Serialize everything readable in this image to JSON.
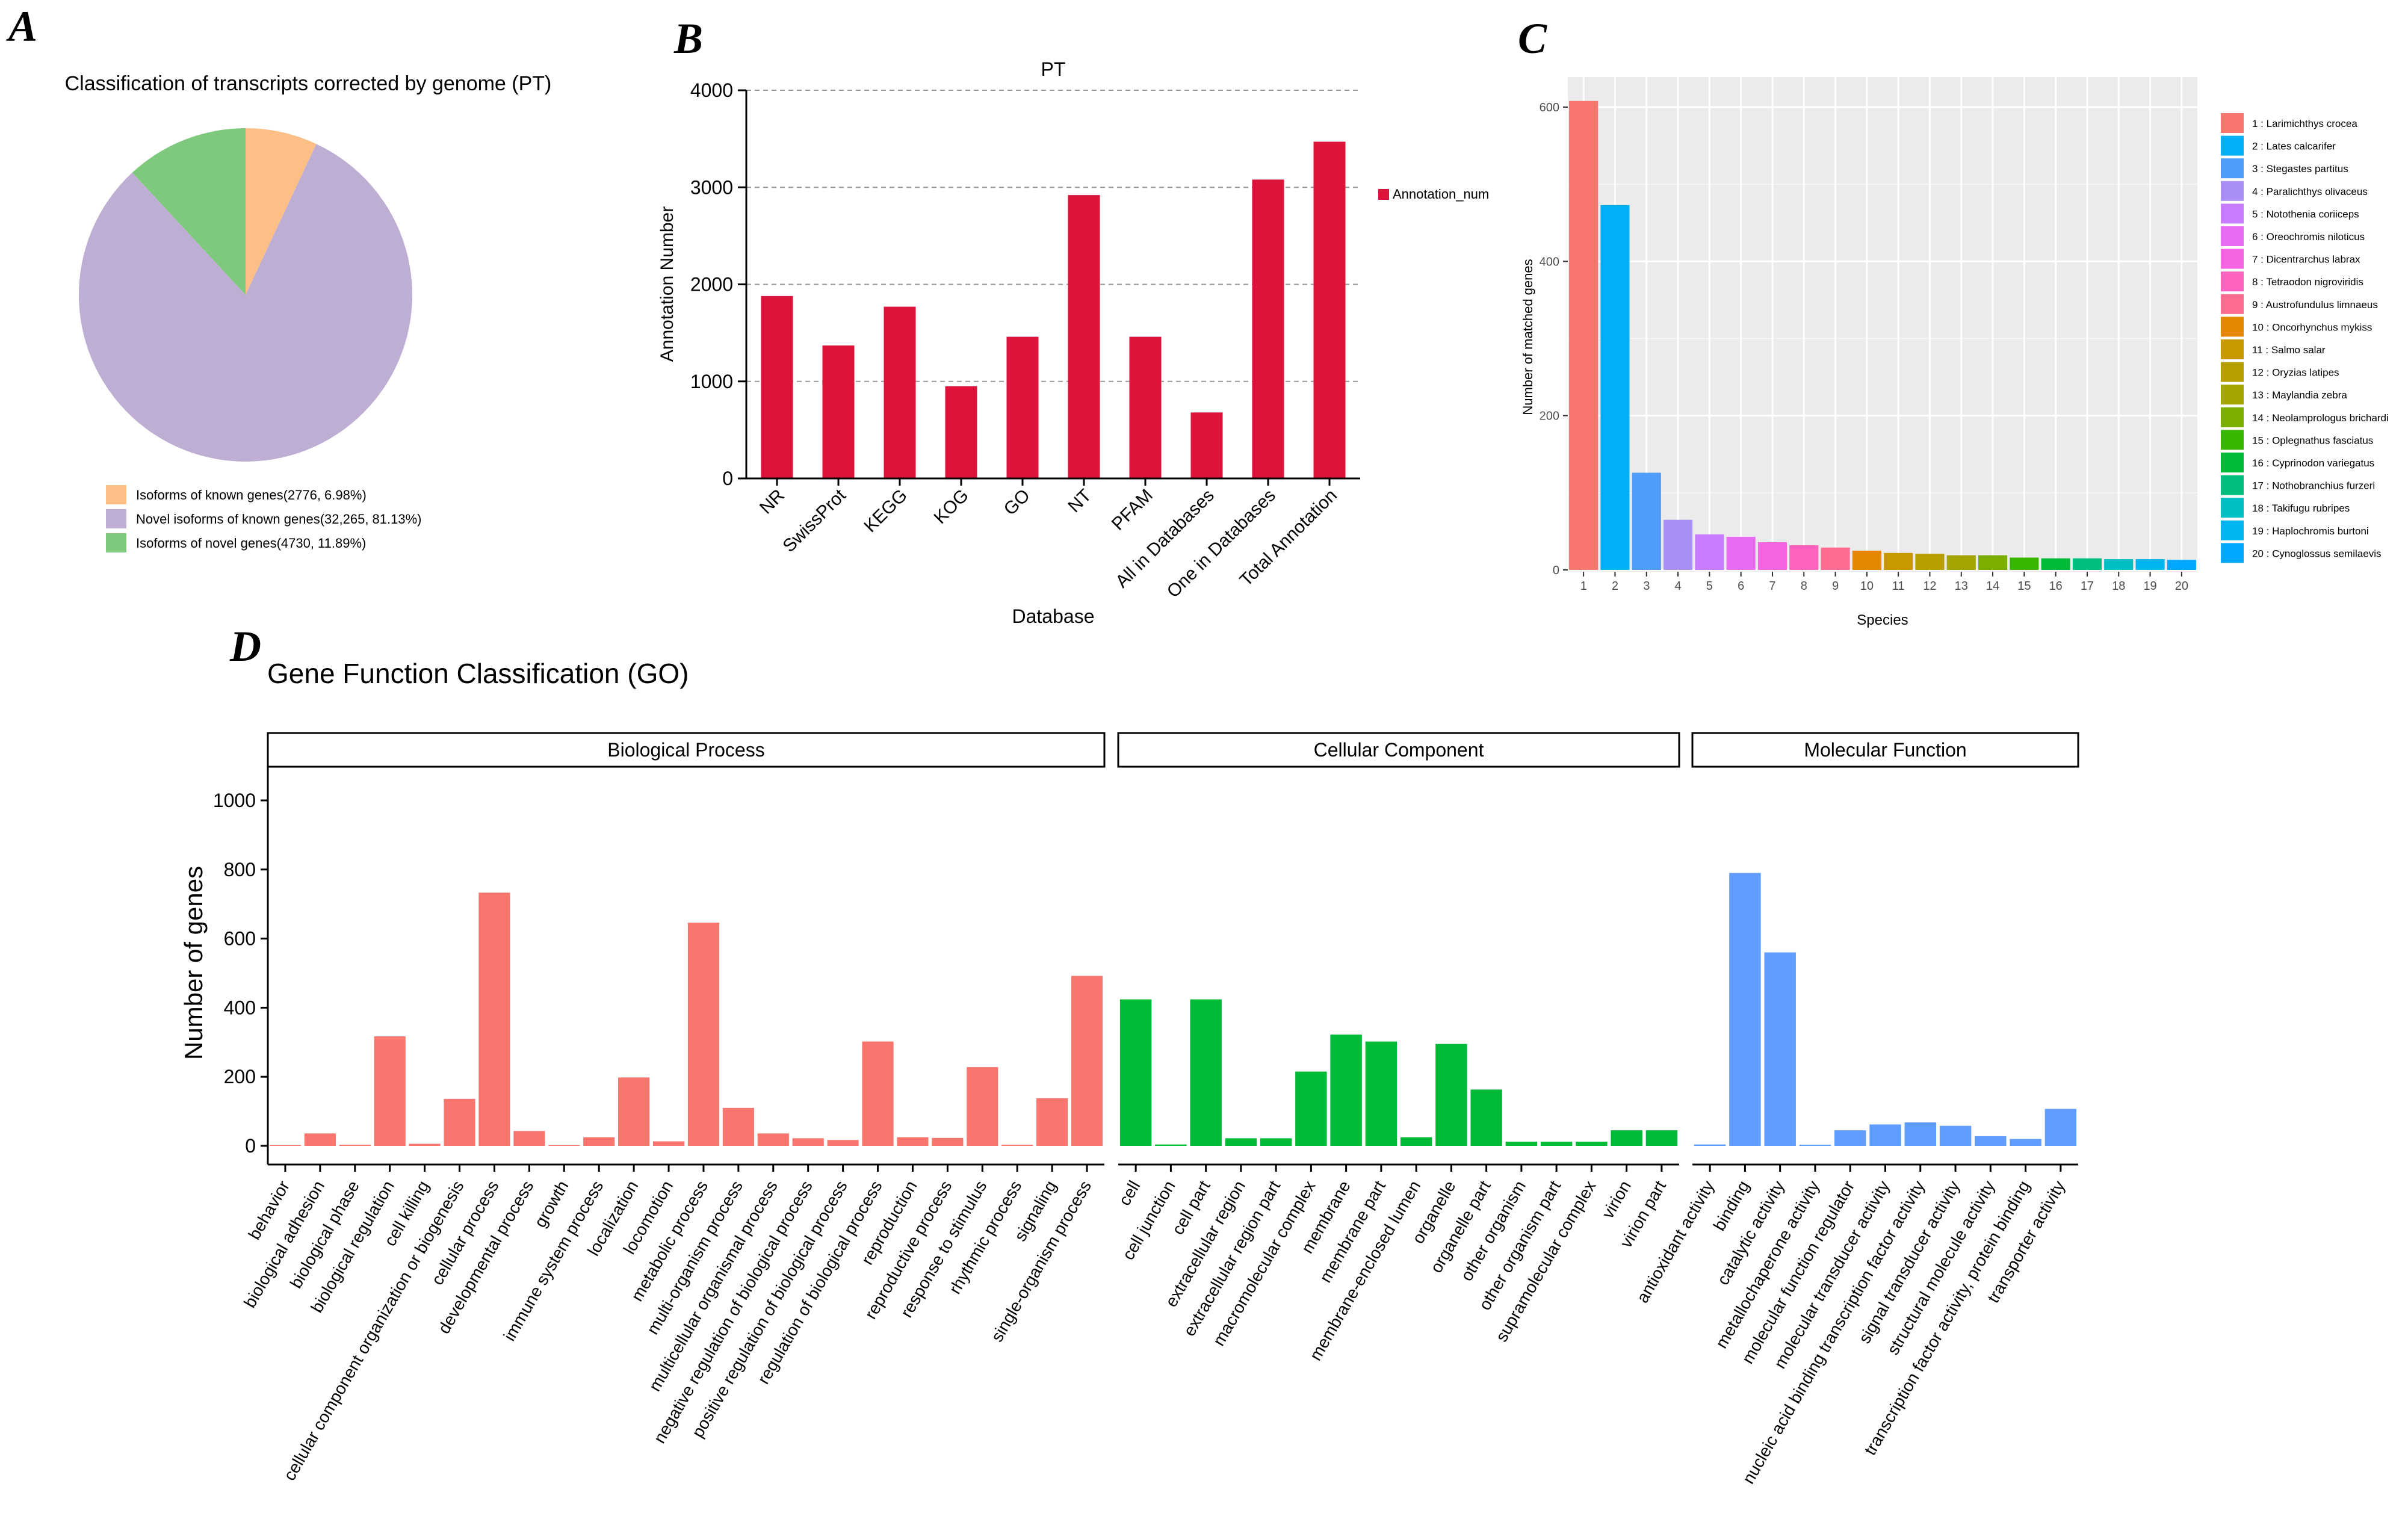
{
  "panels": {
    "a": "A",
    "b": "B",
    "c": "C",
    "d": "D"
  },
  "chart_data": [
    {
      "id": "A",
      "type": "pie",
      "title": "Classification of transcripts corrected by genome (PT)",
      "slices": [
        {
          "label": "Isoforms of known genes(2776, 6.98%)",
          "value": 2776,
          "percent": 6.98,
          "color": "#FDBF86"
        },
        {
          "label": "Novel isoforms of known genes(32,265, 81.13%)",
          "value": 32265,
          "percent": 81.13,
          "color": "#BEAED4"
        },
        {
          "label": "Isoforms of novel genes(4730, 11.89%)",
          "value": 4730,
          "percent": 11.89,
          "color": "#7FC97F"
        }
      ]
    },
    {
      "id": "B",
      "type": "bar",
      "title": "PT",
      "xlabel": "Database",
      "ylabel": "Annotation Number",
      "ylim": [
        0,
        4000
      ],
      "yticks": [
        0,
        1000,
        2000,
        3000,
        4000
      ],
      "grid": "dashed horizontal",
      "legend": "Annotation_num",
      "color": "#DC143C",
      "categories": [
        "NR",
        "SwissProt",
        "KEGG",
        "KOG",
        "GO",
        "NT",
        "PFAM",
        "All in Databases",
        "One in Databases",
        "Total Annotation"
      ],
      "values": [
        1880,
        1370,
        1770,
        950,
        1460,
        2920,
        1460,
        680,
        3080,
        3470
      ]
    },
    {
      "id": "C",
      "type": "bar",
      "title": "",
      "xlabel": "Species",
      "ylabel": "Number of matched genes",
      "ylim": [
        0,
        620
      ],
      "yticks": [
        0,
        200,
        400,
        600
      ],
      "categories": [
        "1",
        "2",
        "3",
        "4",
        "5",
        "6",
        "7",
        "8",
        "9",
        "10",
        "11",
        "12",
        "13",
        "14",
        "15",
        "16",
        "17",
        "18",
        "19",
        "20"
      ],
      "values": [
        608,
        473,
        126,
        65,
        46,
        43,
        36,
        32,
        29,
        25,
        22,
        21,
        19,
        19,
        16,
        15,
        15,
        14,
        14,
        13
      ],
      "legend_labels": [
        "1 : Larimichthys crocea",
        "2 : Lates calcarifer",
        "3 : Stegastes partitus",
        "4 : Paralichthys olivaceus",
        "5 : Notothenia coriiceps",
        "6 : Oreochromis niloticus",
        "7 : Dicentrarchus labrax",
        "8 : Tetraodon nigroviridis",
        "9 : Austrofundulus limnaeus",
        "10 : Oncorhynchus mykiss",
        "11 : Salmo salar",
        "12 : Oryzias latipes",
        "13 : Maylandia zebra",
        "14 : Neolamprologus brichardi",
        "15 : Oplegnathus fasciatus",
        "16 : Cyprinodon variegatus",
        "17 : Nothobranchius furzeri",
        "18 : Takifugu rubripes",
        "19 : Haplochromis burtoni",
        "20 : Cynoglossus semilaevis"
      ],
      "colors": [
        "#F8766D",
        "#00B0F6",
        "#4F9CF9",
        "#A98EF4",
        "#C77CFF",
        "#E76BF3",
        "#F564E3",
        "#FF62BC",
        "#FF6C90",
        "#E58700",
        "#C99800",
        "#B79F00",
        "#A3A500",
        "#7CAE00",
        "#39B600",
        "#00BA38",
        "#00BF7D",
        "#00BFC4",
        "#00B4EF",
        "#00A9FF"
      ]
    },
    {
      "id": "D",
      "type": "bar",
      "title": "Gene Function Classification (GO)",
      "xlabel": "",
      "ylabel": "Number of genes",
      "ylim": [
        0,
        1100
      ],
      "yticks": [
        0,
        200,
        400,
        600,
        800,
        1000
      ],
      "facets": [
        {
          "name": "Biological Process",
          "color": "#F8766D",
          "categories": [
            "behavior",
            "biological adhesion",
            "biological phase",
            "biological regulation",
            "cell killing",
            "cellular component organization or biogenesis",
            "cellular process",
            "developmental process",
            "growth",
            "immune system process",
            "localization",
            "locomotion",
            "metabolic process",
            "multi-organism process",
            "multicellular organismal process",
            "negative regulation of biological process",
            "positive regulation of biological process",
            "regulation of biological process",
            "reproduction",
            "reproductive process",
            "response to stimulus",
            "rhythmic process",
            "signaling",
            "single-organism process"
          ],
          "values": [
            2,
            36,
            3,
            317,
            6,
            136,
            733,
            43,
            2,
            25,
            198,
            13,
            646,
            110,
            36,
            22,
            17,
            302,
            25,
            23,
            228,
            3,
            138,
            492
          ]
        },
        {
          "name": "Cellular Component",
          "color": "#00BA38",
          "categories": [
            "cell",
            "cell junction",
            "cell part",
            "extracellular region",
            "extracellular region part",
            "macromolecular complex",
            "membrane",
            "membrane part",
            "membrane-enclosed lumen",
            "organelle",
            "organelle part",
            "other organism",
            "other organism part",
            "supramolecular complex",
            "virion",
            "virion part"
          ],
          "values": [
            424,
            4,
            424,
            22,
            22,
            215,
            322,
            302,
            25,
            295,
            163,
            12,
            12,
            12,
            45,
            45
          ]
        },
        {
          "name": "Molecular Function",
          "color": "#619CFF",
          "categories": [
            "antioxidant activity",
            "binding",
            "catalytic activity",
            "metallochaperone activity",
            "molecular function regulator",
            "molecular transducer activity",
            "nucleic acid binding transcription factor activity",
            "signal transducer activity",
            "structural molecule activity",
            "transcription factor activity, protein binding",
            "transporter activity"
          ],
          "values": [
            4,
            790,
            560,
            3,
            45,
            62,
            68,
            58,
            28,
            20,
            107
          ]
        }
      ]
    }
  ]
}
